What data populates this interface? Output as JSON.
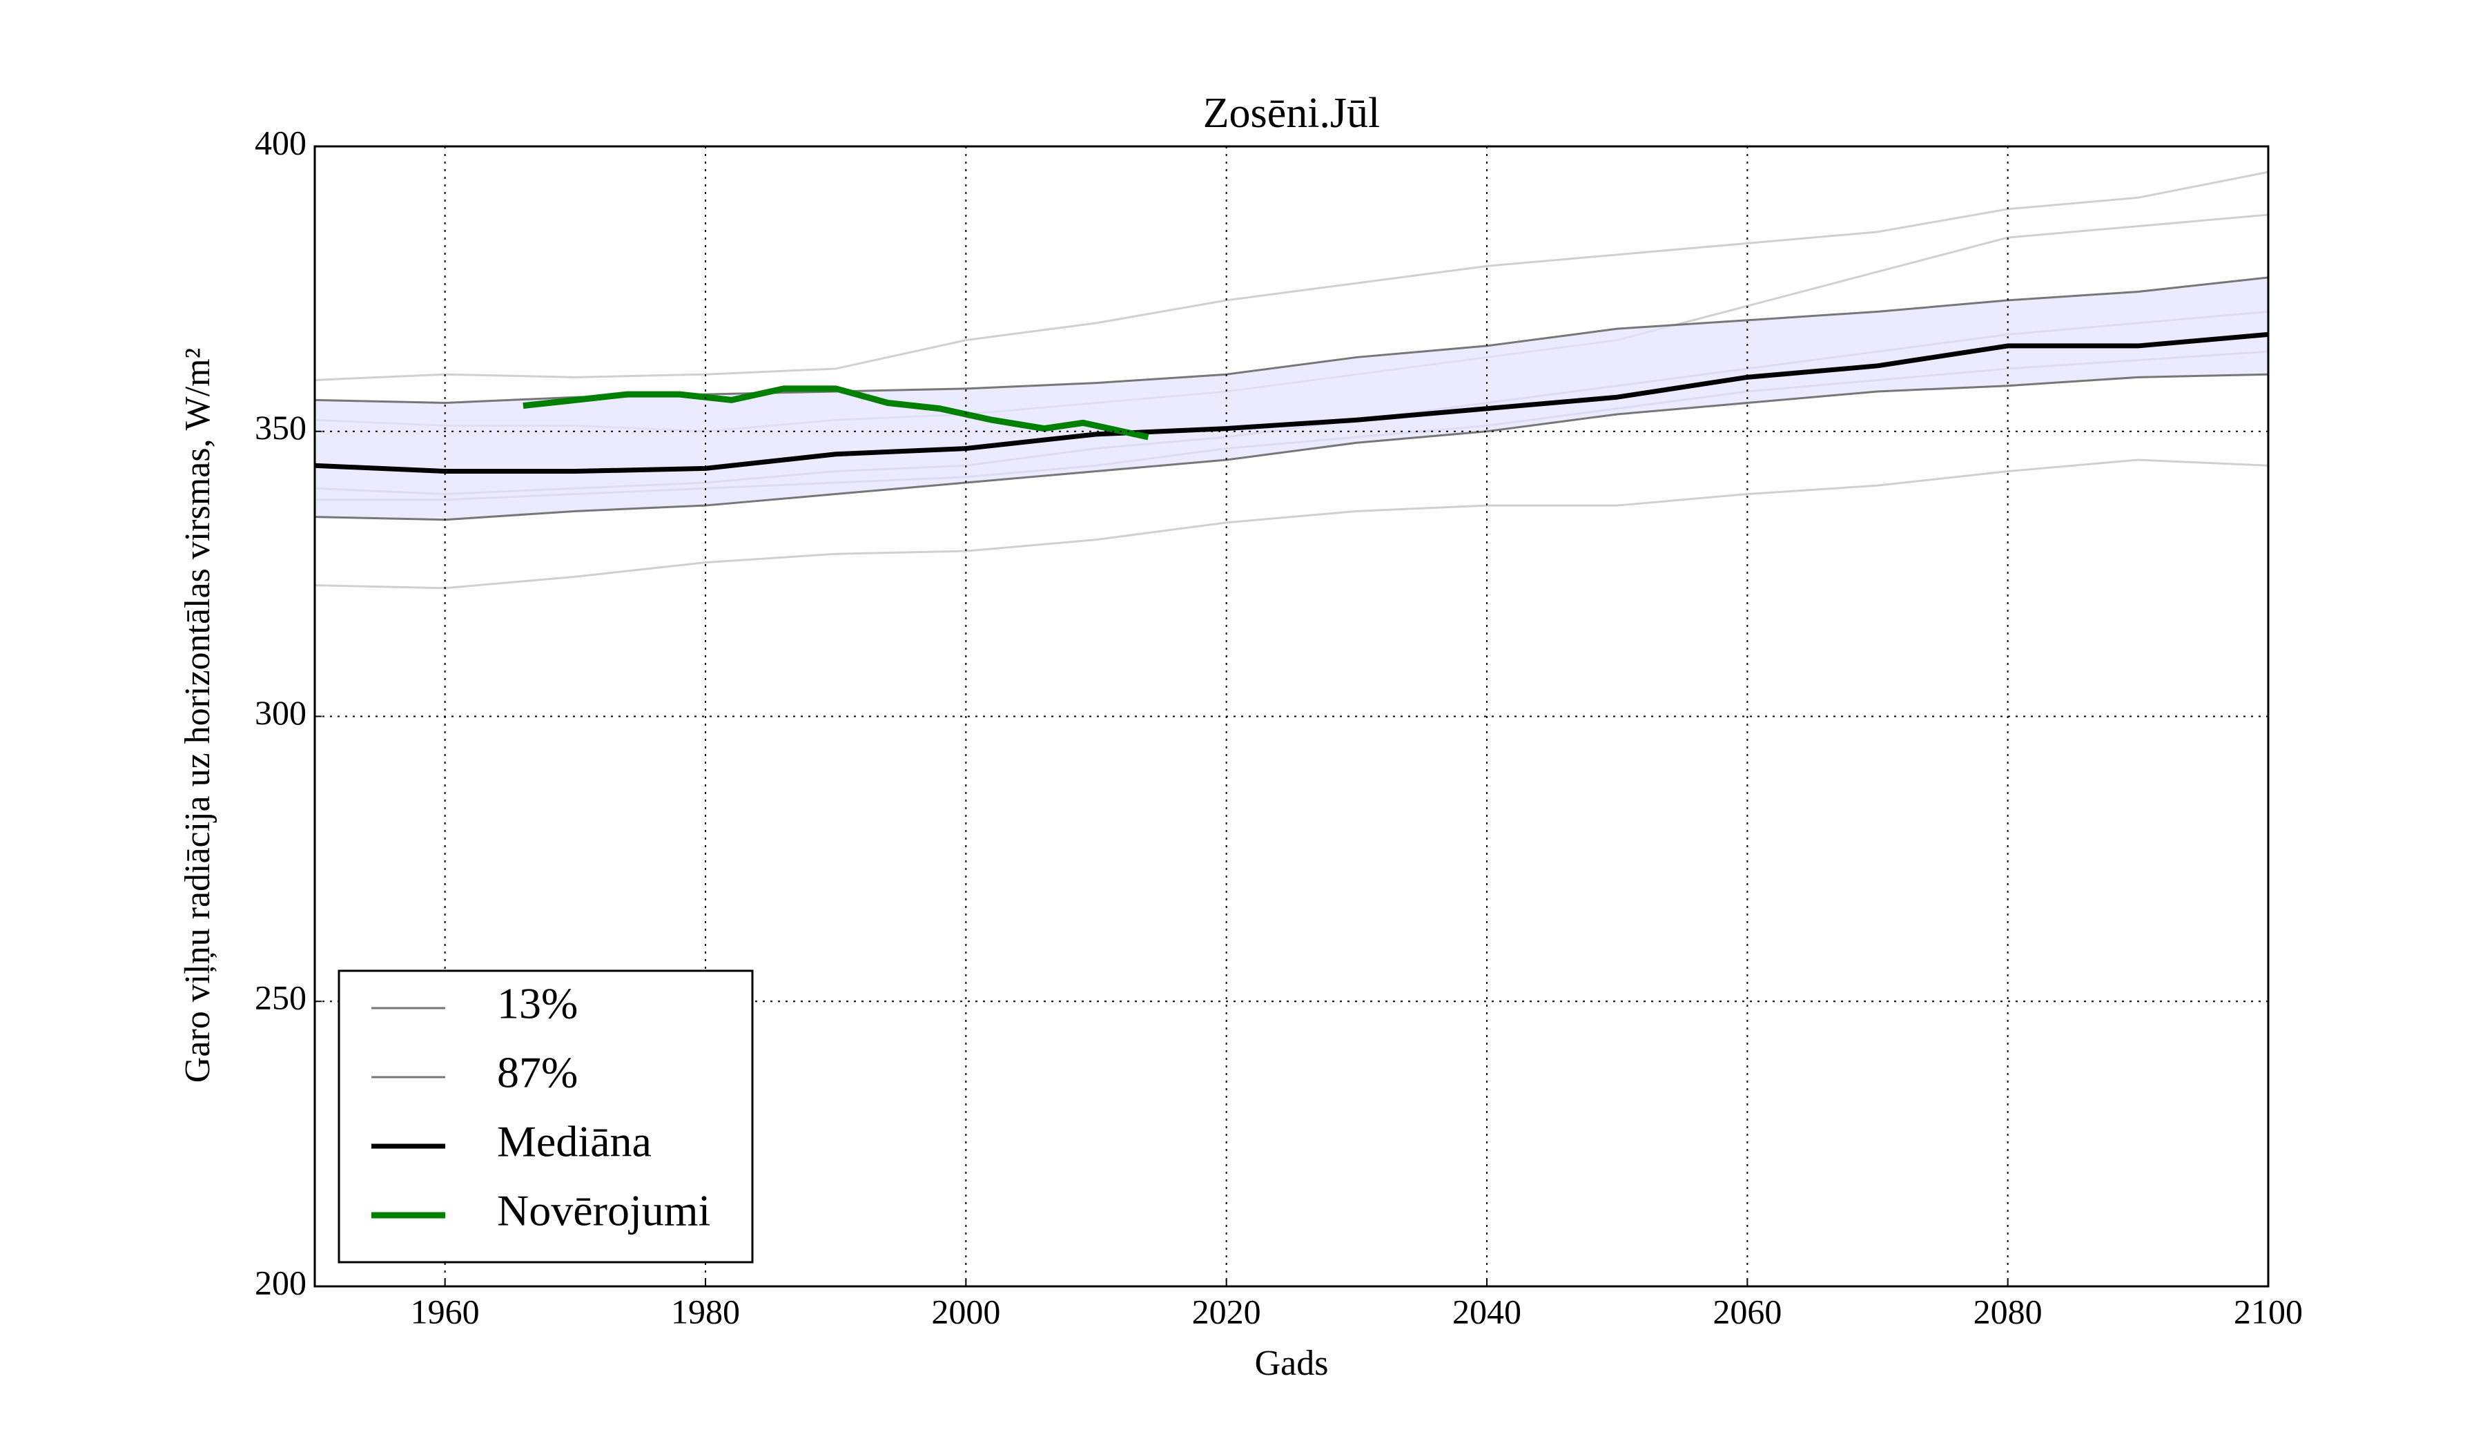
{
  "chart_data": {
    "type": "line",
    "title": "Zosēni.Jūl",
    "xlabel": "Gads",
    "ylabel": "Garo viļņu radiācija uz horizontālas virsmas, W/m²",
    "x": [
      1950,
      1960,
      1970,
      1980,
      1990,
      2000,
      2010,
      2020,
      2030,
      2040,
      2050,
      2060,
      2070,
      2080,
      2090,
      2100
    ],
    "xlim": [
      1950,
      2100
    ],
    "xticks": [
      1960,
      1980,
      2000,
      2020,
      2040,
      2060,
      2080,
      2100
    ],
    "ylim": [
      200,
      400
    ],
    "yticks": [
      200,
      250,
      300,
      350,
      400
    ],
    "grid": true,
    "legend": "lower left",
    "band_color": "#e4e4ff",
    "series": [
      {
        "name": "13%",
        "color": "#777777",
        "values": [
          335,
          334.5,
          336,
          337,
          339,
          341,
          343,
          345,
          348,
          350,
          353,
          355,
          357,
          358,
          359.5,
          360
        ]
      },
      {
        "name": "87%",
        "color": "#777777",
        "values": [
          355.5,
          355,
          356,
          356.5,
          357,
          357.5,
          358.5,
          360,
          363,
          365,
          368,
          369.5,
          371,
          373,
          374.5,
          377
        ]
      },
      {
        "name": "Mediāna",
        "color": "#000000",
        "values": [
          344,
          343,
          343,
          343.5,
          346,
          347,
          349.5,
          350.5,
          352,
          354,
          356,
          359.5,
          361.5,
          365,
          365,
          367
        ]
      },
      {
        "name": "Novērojumi",
        "color": "#008000",
        "x": [
          1966,
          1970,
          1974,
          1978,
          1982,
          1986,
          1990,
          1994,
          1998,
          2002,
          2006,
          2009,
          2014
        ],
        "values": [
          354.5,
          355.5,
          356.5,
          356.5,
          355.5,
          357.5,
          357.5,
          355,
          354,
          352,
          350.5,
          351.5,
          349
        ]
      },
      {
        "color": "#d0d0d0",
        "values": [
          359,
          360,
          359.5,
          360,
          361,
          366,
          369,
          373,
          376,
          379,
          381,
          383,
          385,
          389,
          391,
          395.5
        ]
      },
      {
        "color": "#d0d0d0",
        "values": [
          323,
          322.5,
          324.5,
          327,
          328.5,
          329,
          331,
          334,
          336,
          337,
          337,
          339,
          340.5,
          343,
          345,
          344
        ]
      },
      {
        "color": "#d0d0d0",
        "values": [
          352,
          351,
          351,
          350,
          352,
          353,
          355,
          357,
          360,
          363,
          366,
          372,
          378,
          384,
          386,
          388
        ]
      },
      {
        "color": "#c4c4d0",
        "values": [
          340,
          339,
          340,
          341,
          343,
          344,
          347,
          349,
          352,
          355,
          358,
          361,
          364,
          367,
          369,
          371
        ]
      },
      {
        "color": "#c4c4d0",
        "values": [
          338,
          338,
          339,
          340,
          341,
          342,
          344,
          347,
          349,
          351,
          354,
          357,
          359,
          361,
          362.5,
          364
        ]
      }
    ]
  }
}
